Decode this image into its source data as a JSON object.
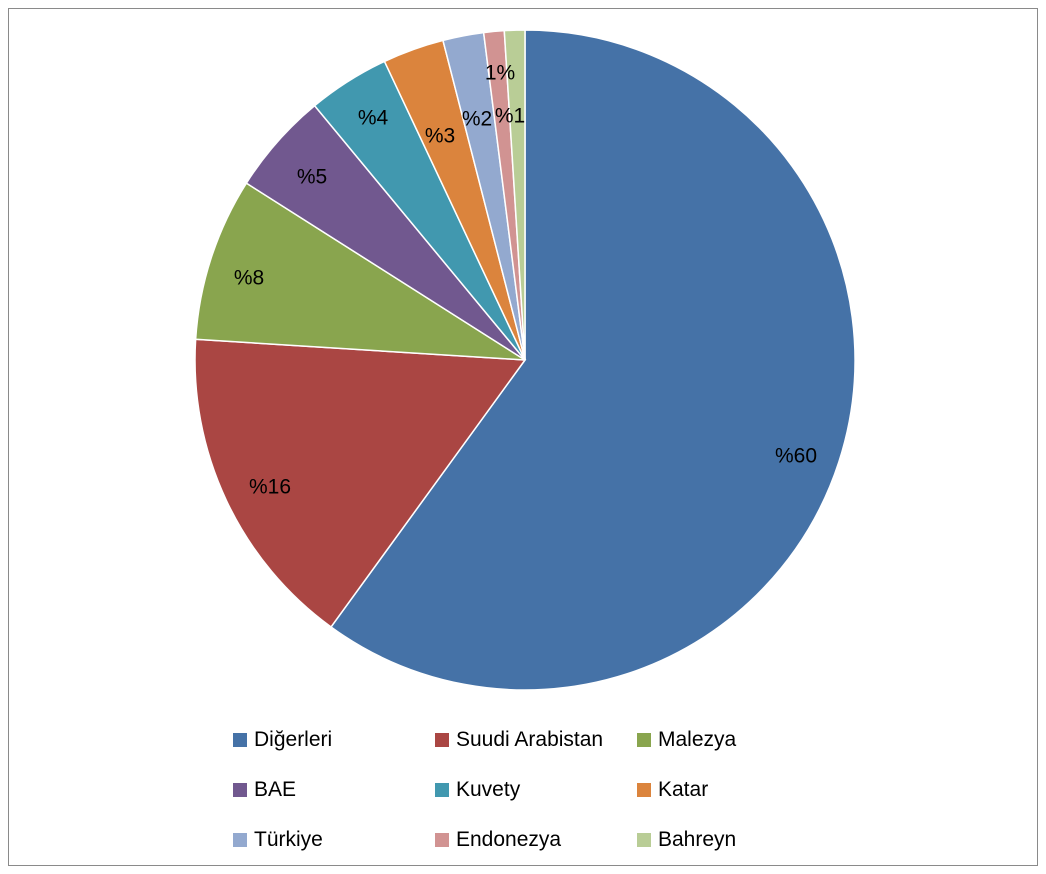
{
  "chart_data": {
    "type": "pie",
    "title": "",
    "legend_position": "bottom",
    "slices": [
      {
        "name": "Diğerleri",
        "value": 60,
        "label": "%60",
        "color": "#4572a7"
      },
      {
        "name": "Suudi Arabistan",
        "value": 16,
        "label": "%16",
        "color": "#aa4643"
      },
      {
        "name": "Malezya",
        "value": 8,
        "label": "%8",
        "color": "#89a54e"
      },
      {
        "name": "BAE",
        "value": 5,
        "label": "%5",
        "color": "#71588f"
      },
      {
        "name": "Kuvety",
        "value": 4,
        "label": "%4",
        "color": "#4198af"
      },
      {
        "name": "Katar",
        "value": 3,
        "label": "%3",
        "color": "#db843d"
      },
      {
        "name": "Türkiye",
        "value": 2,
        "label": "%2",
        "color": "#93a9cf"
      },
      {
        "name": "Endonezya",
        "value": 1,
        "label": "1%",
        "color": "#d19392"
      },
      {
        "name": "Bahreyn",
        "value": 1,
        "label": "%1",
        "color": "#b9cd96"
      }
    ]
  }
}
